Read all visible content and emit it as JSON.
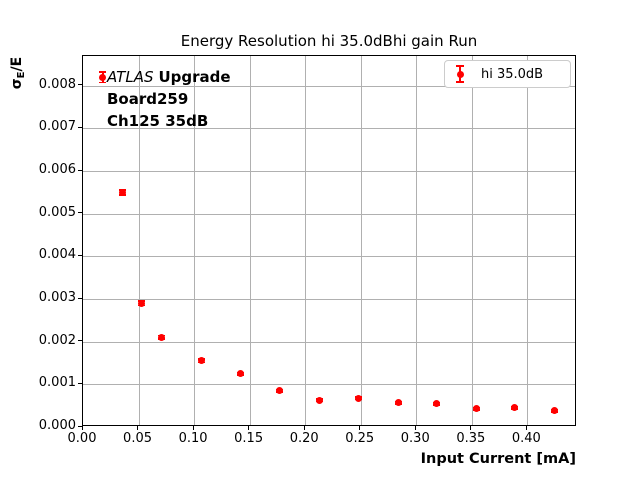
{
  "axes": {
    "ylabel_sigma": "σ",
    "ylabel_sub": "E",
    "ylabel_rest": "/E"
  },
  "annotation": {
    "line1_italic": "ATLAS",
    "line1_bold": "Upgrade",
    "line2": "Board259",
    "line3": "Ch125 35dB"
  },
  "legend": {
    "label": "hi 35.0dB"
  },
  "colors": {
    "series": "#ff0000",
    "grid": "#b0b0b0",
    "text": "#000000",
    "legend_border": "#cccccc"
  },
  "chart_data": {
    "type": "scatter",
    "title": "Energy Resolution hi 35.0dBhi gain Run",
    "xlabel": "Input Current [mA]",
    "ylabel": "σE/E",
    "grid": true,
    "legend_position": "upper right",
    "marker": "circle-with-errorbar",
    "xlim": [
      0,
      0.4447
    ],
    "ylim": [
      0,
      0.0087
    ],
    "xtick_values": [
      0,
      0.05,
      0.1,
      0.15,
      0.2,
      0.25,
      0.3,
      0.35,
      0.4
    ],
    "xtick_labels": [
      "0.00",
      "0.05",
      "0.10",
      "0.15",
      "0.20",
      "0.25",
      "0.30",
      "0.35",
      "0.40"
    ],
    "ytick_values": [
      0,
      0.001,
      0.002,
      0.003,
      0.004,
      0.005,
      0.006,
      0.007,
      0.008
    ],
    "ytick_labels": [
      "0.000",
      "0.001",
      "0.002",
      "0.003",
      "0.004",
      "0.005",
      "0.006",
      "0.007",
      "0.008"
    ],
    "series": [
      {
        "name": "hi 35.0dB",
        "color": "#ff0000",
        "x": [
          0.018,
          0.036,
          0.053,
          0.071,
          0.107,
          0.142,
          0.177,
          0.213,
          0.248,
          0.284,
          0.318,
          0.354,
          0.388,
          0.424
        ],
        "y": [
          0.0082,
          0.0055,
          0.0029,
          0.0021,
          0.00155,
          0.00125,
          0.00085,
          0.00063,
          0.00067,
          0.00057,
          0.00055,
          0.00043,
          0.00045,
          0.00038
        ],
        "yerr": [
          0.00012,
          6e-05,
          5e-05,
          4e-05,
          4e-05,
          3e-05,
          3e-05,
          3e-05,
          3e-05,
          3e-05,
          3e-05,
          3e-05,
          3e-05,
          3e-05
        ]
      }
    ]
  }
}
